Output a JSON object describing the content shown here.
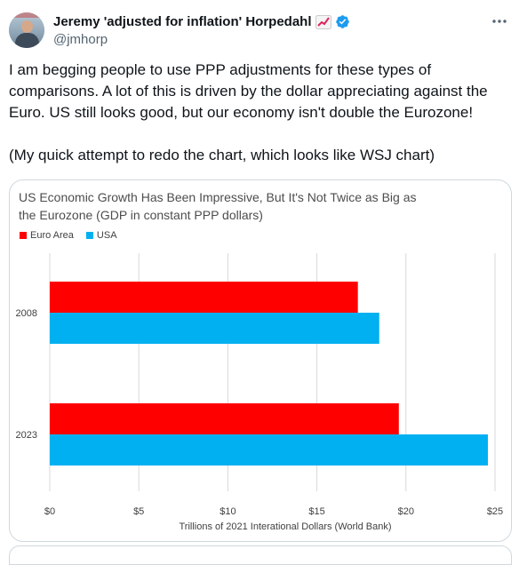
{
  "author": {
    "name": "Jeremy 'adjusted for inflation' Horpedahl",
    "handle": "@jmhorp",
    "emoji_icon": "chart-increasing-icon",
    "verified_icon": "verified-badge-icon"
  },
  "tweet": {
    "paragraph1": "I am begging people to use PPP adjustments for these types of comparisons. A lot of this is driven by the dollar appreciating against the Euro. US still looks good, but our economy isn't double the Eurozone!",
    "paragraph2": "(My quick attempt to redo the chart, which looks like WSJ chart)"
  },
  "chart_data": {
    "type": "bar",
    "orientation": "horizontal",
    "title": "US Economic Growth Has Been Impressive, But It's Not Twice as Big as the Eurozone (GDP in constant PPP dollars)",
    "categories": [
      "2008",
      "2023"
    ],
    "series": [
      {
        "name": "Euro Area",
        "color": "#ff0000",
        "values": [
          17.3,
          19.6
        ]
      },
      {
        "name": "USA",
        "color": "#00b0f0",
        "values": [
          18.5,
          24.6
        ]
      }
    ],
    "xlabel": "Trillions of 2021 Interational Dollars (World Bank)",
    "xlim": [
      0,
      25
    ],
    "xticks": [
      0,
      5,
      10,
      15,
      20,
      25
    ],
    "xtick_labels": [
      "$0",
      "$5",
      "$10",
      "$15",
      "$20",
      "$25"
    ],
    "grid": true,
    "legend_position": "top-left"
  }
}
